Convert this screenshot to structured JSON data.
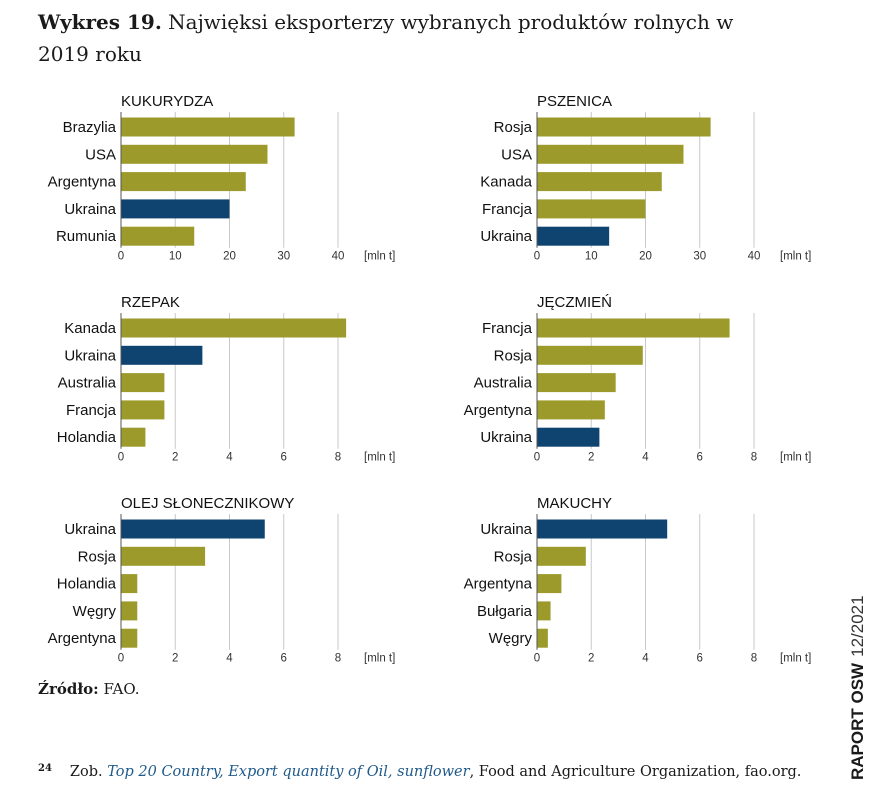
{
  "title": {
    "label": "Wykres 19.",
    "text": "Najwięksi eksporterzy wybranych produktów rolnych w 2019 roku"
  },
  "colors": {
    "other": "#9c9a2b",
    "ukraine": "#0f4470",
    "grid": "#c8c8c8"
  },
  "chart_data": [
    {
      "type": "bar",
      "orientation": "horizontal",
      "title": "KUKURYDZA",
      "categories": [
        "Brazylia",
        "USA",
        "Argentyna",
        "Ukraina",
        "Rumunia"
      ],
      "values": [
        32,
        27,
        23,
        20,
        13.5
      ],
      "xlim": [
        0,
        40
      ],
      "ticks": [
        0,
        10,
        20,
        30,
        40
      ],
      "unit": "[mln t]",
      "highlight": "Ukraina"
    },
    {
      "type": "bar",
      "orientation": "horizontal",
      "title": "PSZENICA",
      "categories": [
        "Rosja",
        "USA",
        "Kanada",
        "Francja",
        "Ukraina"
      ],
      "values": [
        32,
        27,
        23,
        20,
        13.3
      ],
      "xlim": [
        0,
        40
      ],
      "ticks": [
        0,
        10,
        20,
        30,
        40
      ],
      "unit": "[mln t]",
      "highlight": "Ukraina"
    },
    {
      "type": "bar",
      "orientation": "horizontal",
      "title": "RZEPAK",
      "categories": [
        "Kanada",
        "Ukraina",
        "Australia",
        "Francja",
        "Holandia"
      ],
      "values": [
        8.3,
        3.0,
        1.6,
        1.6,
        0.9
      ],
      "xlim": [
        0,
        8
      ],
      "ticks": [
        0,
        2,
        4,
        6,
        8
      ],
      "unit": "[mln t]",
      "highlight": "Ukraina"
    },
    {
      "type": "bar",
      "orientation": "horizontal",
      "title": "JĘCZMIEŃ",
      "categories": [
        "Francja",
        "Rosja",
        "Australia",
        "Argentyna",
        "Ukraina"
      ],
      "values": [
        7.1,
        3.9,
        2.9,
        2.5,
        2.3
      ],
      "xlim": [
        0,
        8
      ],
      "ticks": [
        0,
        2,
        4,
        6,
        8
      ],
      "unit": "[mln t]",
      "highlight": "Ukraina"
    },
    {
      "type": "bar",
      "orientation": "horizontal",
      "title": "OLEJ SŁONECZNIKOWY",
      "categories": [
        "Ukraina",
        "Rosja",
        "Holandia",
        "Węgry",
        "Argentyna"
      ],
      "values": [
        5.3,
        3.1,
        0.6,
        0.6,
        0.6
      ],
      "xlim": [
        0,
        8
      ],
      "ticks": [
        0,
        2,
        4,
        6,
        8
      ],
      "unit": "[mln t]",
      "highlight": "Ukraina"
    },
    {
      "type": "bar",
      "orientation": "horizontal",
      "title": "MAKUCHY",
      "categories": [
        "Ukraina",
        "Rosja",
        "Argentyna",
        "Bułgaria",
        "Węgry"
      ],
      "values": [
        4.8,
        1.8,
        0.9,
        0.5,
        0.4
      ],
      "xlim": [
        0,
        8
      ],
      "ticks": [
        0,
        2,
        4,
        6,
        8
      ],
      "unit": "[mln t]",
      "highlight": "Ukraina"
    }
  ],
  "source": {
    "label": "Źródło:",
    "text": "FAO."
  },
  "footnote": {
    "number": "24",
    "prefix": "Zob.",
    "link_text": "Top 20 Country, Export quantity of Oil, sunflower",
    "suffix": ", Food and Agriculture Organization, fao.org."
  },
  "side_label": {
    "bold": "RAPORT OSW",
    "light": "12/2021"
  }
}
